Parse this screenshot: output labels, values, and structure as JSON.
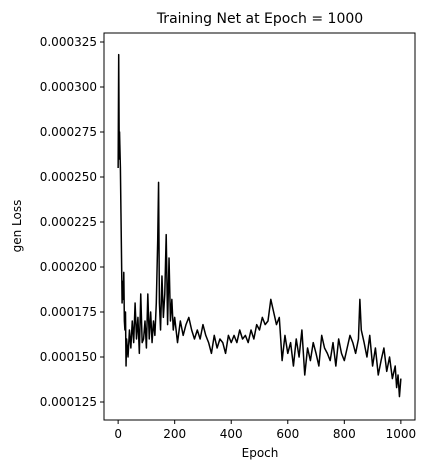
{
  "chart_data": {
    "type": "line",
    "title": "Training Net at Epoch = 1000",
    "xlabel": "Epoch",
    "ylabel": "gen Loss",
    "xlim": [
      -50,
      1050
    ],
    "ylim": [
      0.000115,
      0.00033
    ],
    "xticks": [
      0,
      200,
      400,
      600,
      800,
      1000
    ],
    "xtick_labels": [
      "0",
      "200",
      "400",
      "600",
      "800",
      "1000"
    ],
    "yticks": [
      0.000125,
      0.00015,
      0.000175,
      0.0002,
      0.000225,
      0.00025,
      0.000275,
      0.0003,
      0.000325
    ],
    "ytick_labels": [
      "0.000125",
      "0.000150",
      "0.000175",
      "0.000200",
      "0.000225",
      "0.000250",
      "0.000275",
      "0.000300",
      "0.000325"
    ],
    "grid": false,
    "series": [
      {
        "color": "#000000",
        "x": [
          0,
          2,
          4,
          5,
          6,
          8,
          10,
          12,
          14,
          16,
          18,
          20,
          22,
          24,
          26,
          28,
          30,
          35,
          40,
          45,
          50,
          55,
          60,
          65,
          70,
          75,
          80,
          85,
          90,
          95,
          100,
          105,
          110,
          115,
          120,
          125,
          130,
          135,
          140,
          143,
          146,
          150,
          155,
          160,
          165,
          170,
          175,
          180,
          185,
          190,
          195,
          200,
          210,
          220,
          230,
          240,
          250,
          260,
          270,
          280,
          290,
          300,
          310,
          320,
          330,
          340,
          350,
          360,
          370,
          380,
          390,
          400,
          410,
          420,
          430,
          440,
          450,
          460,
          470,
          480,
          490,
          500,
          510,
          520,
          530,
          540,
          550,
          560,
          570,
          580,
          590,
          600,
          610,
          620,
          630,
          640,
          650,
          660,
          670,
          680,
          690,
          700,
          710,
          720,
          730,
          740,
          750,
          760,
          770,
          780,
          790,
          800,
          810,
          820,
          830,
          840,
          850,
          855,
          860,
          870,
          880,
          890,
          900,
          910,
          920,
          930,
          940,
          950,
          960,
          970,
          980,
          985,
          990,
          995,
          1000
        ],
        "y": [
          0.000255,
          0.000318,
          0.00026,
          0.000275,
          0.000268,
          0.000255,
          0.00023,
          0.000205,
          0.00018,
          0.000192,
          0.000182,
          0.000197,
          0.00017,
          0.000165,
          0.000175,
          0.000145,
          0.00016,
          0.00015,
          0.000165,
          0.000155,
          0.00017,
          0.000158,
          0.00018,
          0.00016,
          0.000172,
          0.000152,
          0.000185,
          0.000158,
          0.00016,
          0.00017,
          0.000155,
          0.000185,
          0.00016,
          0.000175,
          0.000158,
          0.00017,
          0.000162,
          0.00018,
          0.000215,
          0.000247,
          0.00018,
          0.000165,
          0.000195,
          0.000172,
          0.000185,
          0.000218,
          0.000168,
          0.000205,
          0.00017,
          0.000182,
          0.000165,
          0.000172,
          0.000158,
          0.00017,
          0.000162,
          0.000168,
          0.000172,
          0.000165,
          0.00016,
          0.000165,
          0.00016,
          0.000168,
          0.000162,
          0.000158,
          0.000152,
          0.000162,
          0.000155,
          0.00016,
          0.000158,
          0.000152,
          0.000162,
          0.000158,
          0.000162,
          0.000158,
          0.000165,
          0.00016,
          0.000162,
          0.000158,
          0.000165,
          0.00016,
          0.000168,
          0.000165,
          0.000172,
          0.000168,
          0.00017,
          0.000182,
          0.000175,
          0.000168,
          0.000172,
          0.000148,
          0.000162,
          0.000152,
          0.000158,
          0.000145,
          0.00016,
          0.00015,
          0.000165,
          0.00014,
          0.000155,
          0.000148,
          0.000158,
          0.000152,
          0.000145,
          0.000162,
          0.000155,
          0.000152,
          0.000148,
          0.000158,
          0.000145,
          0.00016,
          0.000152,
          0.000148,
          0.000155,
          0.000162,
          0.000158,
          0.000152,
          0.00016,
          0.000182,
          0.000165,
          0.000158,
          0.00015,
          0.000162,
          0.000145,
          0.000155,
          0.00014,
          0.000148,
          0.000155,
          0.000142,
          0.00015,
          0.000138,
          0.000145,
          0.000133,
          0.00014,
          0.000128,
          0.000138
        ]
      }
    ]
  }
}
